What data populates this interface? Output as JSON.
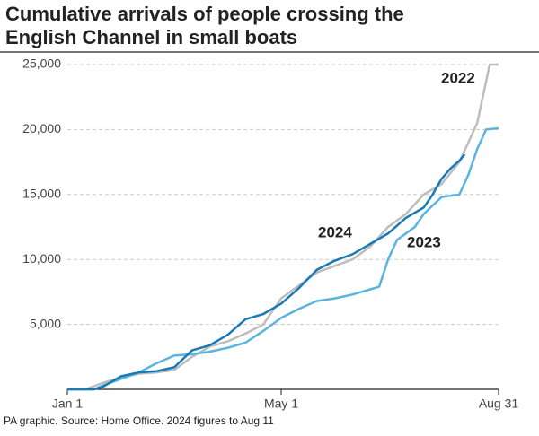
{
  "chart_data": {
    "type": "line",
    "title": [
      "Cumulative arrivals of people crossing the",
      "English Channel in small boats"
    ],
    "source": "PA graphic. Source: Home Office. 2024 figures to Aug 11",
    "xlim": [
      0,
      242
    ],
    "xticks": [
      {
        "value": 0,
        "label": "Jan 1"
      },
      {
        "value": 120,
        "label": "May 1"
      },
      {
        "value": 242,
        "label": "Aug 31"
      }
    ],
    "ylim": [
      0,
      25000
    ],
    "yticks": [
      {
        "value": 5000,
        "label": "5,000"
      },
      {
        "value": 10000,
        "label": "10,000"
      },
      {
        "value": 15000,
        "label": "15,000"
      },
      {
        "value": 20000,
        "label": "20,000"
      },
      {
        "value": 25000,
        "label": "25,000"
      }
    ],
    "grid": true,
    "series": [
      {
        "name": "2022",
        "color": "#bdbdbd",
        "x": [
          0,
          10,
          20,
          30,
          40,
          50,
          60,
          70,
          80,
          90,
          100,
          110,
          120,
          130,
          140,
          150,
          160,
          170,
          180,
          190,
          200,
          210,
          220,
          230,
          237,
          242
        ],
        "values": [
          0,
          0,
          500,
          900,
          1200,
          1300,
          1500,
          2500,
          3300,
          3700,
          4300,
          5000,
          7000,
          8000,
          9000,
          9500,
          10000,
          11000,
          12500,
          13500,
          15000,
          15800,
          17500,
          20500,
          25000,
          25000
        ]
      },
      {
        "name": "2023",
        "color": "#5ab4e0",
        "x": [
          0,
          15,
          20,
          30,
          40,
          50,
          60,
          70,
          80,
          90,
          100,
          110,
          120,
          130,
          140,
          150,
          160,
          170,
          175,
          180,
          185,
          195,
          200,
          210,
          220,
          225,
          230,
          235,
          242
        ],
        "values": [
          0,
          0,
          300,
          800,
          1300,
          2000,
          2600,
          2700,
          2900,
          3200,
          3600,
          4500,
          5500,
          6200,
          6800,
          7000,
          7300,
          7700,
          7900,
          10000,
          11500,
          12500,
          13500,
          14800,
          15000,
          16500,
          18500,
          20000,
          20100
        ]
      },
      {
        "name": "2024",
        "color": "#1a7ab5",
        "x": [
          0,
          15,
          20,
          30,
          40,
          50,
          60,
          70,
          80,
          90,
          100,
          110,
          120,
          130,
          140,
          150,
          160,
          170,
          180,
          190,
          200,
          205,
          210,
          215,
          220,
          223
        ],
        "values": [
          0,
          0,
          200,
          1000,
          1300,
          1400,
          1700,
          3000,
          3400,
          4200,
          5400,
          5800,
          6600,
          7800,
          9200,
          9900,
          10400,
          11200,
          12000,
          13200,
          14000,
          15000,
          16200,
          17000,
          17600,
          18100
        ]
      }
    ]
  }
}
